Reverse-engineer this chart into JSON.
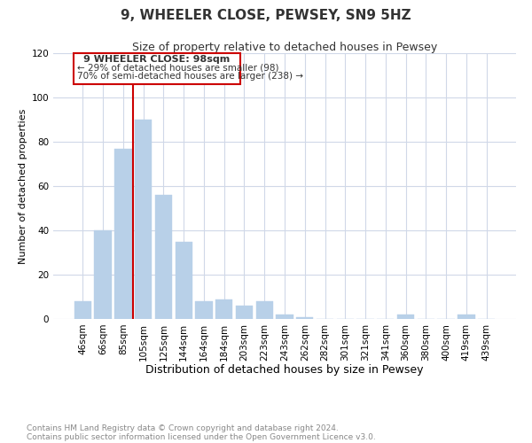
{
  "title": "9, WHEELER CLOSE, PEWSEY, SN9 5HZ",
  "subtitle": "Size of property relative to detached houses in Pewsey",
  "xlabel": "Distribution of detached houses by size in Pewsey",
  "ylabel": "Number of detached properties",
  "bar_labels": [
    "46sqm",
    "66sqm",
    "85sqm",
    "105sqm",
    "125sqm",
    "144sqm",
    "164sqm",
    "184sqm",
    "203sqm",
    "223sqm",
    "243sqm",
    "262sqm",
    "282sqm",
    "301sqm",
    "321sqm",
    "341sqm",
    "360sqm",
    "380sqm",
    "400sqm",
    "419sqm",
    "439sqm"
  ],
  "bar_values": [
    8,
    40,
    77,
    90,
    56,
    35,
    8,
    9,
    6,
    8,
    2,
    1,
    0,
    0,
    0,
    0,
    2,
    0,
    0,
    2,
    0
  ],
  "bar_color": "#b8d0e8",
  "bar_edge_color": "#b8d0e8",
  "ylim": [
    0,
    120
  ],
  "yticks": [
    0,
    20,
    40,
    60,
    80,
    100,
    120
  ],
  "vline_color": "#cc0000",
  "annotation_title": "9 WHEELER CLOSE: 98sqm",
  "annotation_line1": "← 29% of detached houses are smaller (98)",
  "annotation_line2": "70% of semi-detached houses are larger (238) →",
  "annotation_box_color": "#cc0000",
  "footnote1": "Contains HM Land Registry data © Crown copyright and database right 2024.",
  "footnote2": "Contains public sector information licensed under the Open Government Licence v3.0.",
  "bg_color": "#ffffff",
  "grid_color": "#d0d8e8",
  "title_fontsize": 11,
  "subtitle_fontsize": 9,
  "xlabel_fontsize": 9,
  "ylabel_fontsize": 8,
  "tick_fontsize": 7.5,
  "footnote_fontsize": 6.5
}
